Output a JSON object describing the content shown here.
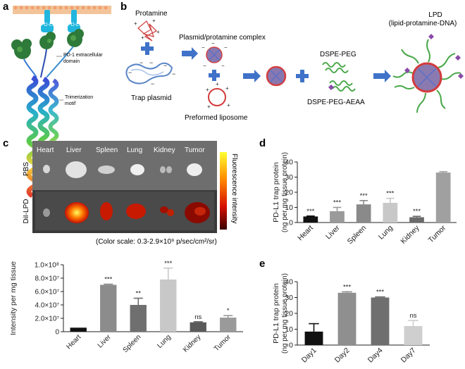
{
  "panels": {
    "a": "a",
    "b": "b",
    "c": "c",
    "d": "d",
    "e": "e"
  },
  "panel_a": {
    "pdl1_left": "PD-L1",
    "pdl1_right": "PD-L1",
    "extracellular": "PD-1 extracellular",
    "domain": "domain",
    "trimer1": "Trimerization",
    "trimer2": "motif"
  },
  "panel_b": {
    "protamine": "Protamine",
    "complex": "Plasmid/protamine complex",
    "trap_plasmid": "Trap plasmid",
    "liposome": "Preformed liposome",
    "dspe_peg": "DSPE-PEG",
    "dspe_peg_aeaa": "DSPE-PEG-AEAA",
    "lpd": "LPD",
    "lpd_full": "(lipid-protamine-DNA)"
  },
  "panel_c_image": {
    "organs": [
      "Heart",
      "Liver",
      "Spleen",
      "Lung",
      "Kidney",
      "Tumor"
    ],
    "row_pbs": "PBS",
    "row_dil": "DiI-LPD",
    "colorbar_label": "Fluorescence intensity",
    "scale_note": "(Color scale: 0.3-2.9×10⁹ p/sec/cm²/sr)"
  },
  "chart_data": [
    {
      "id": "c-bar",
      "type": "bar",
      "categories": [
        "Heart",
        "Liver",
        "Spleen",
        "Lung",
        "Kidney",
        "Tumor"
      ],
      "values": [
        6000000,
        70000000,
        40000000,
        78000000,
        14000000,
        21000000
      ],
      "errors": [
        0,
        1000000,
        10000000,
        17000000,
        800000,
        3000000
      ],
      "significance": [
        "",
        "***",
        "**",
        "***",
        "ns",
        "*"
      ],
      "colors": [
        "#111111",
        "#8c8c8c",
        "#6f6f6f",
        "#c8c8c8",
        "#5a5a5a",
        "#9a9a9a"
      ],
      "ylabel": "Intensity per mg tissue",
      "ylim": [
        0,
        100000000
      ],
      "yticks": [
        "0",
        "2.0×10⁷",
        "4.0×10⁷",
        "6.0×10⁷",
        "8.0×10⁷",
        "1.0×10⁸"
      ]
    },
    {
      "id": "d-bar",
      "type": "bar",
      "categories": [
        "Heart",
        "Liver",
        "Spleen",
        "Lung",
        "Kidney",
        "Tumor"
      ],
      "values": [
        4,
        7.5,
        12,
        13,
        3.5,
        33
      ],
      "errors": [
        0.3,
        2.5,
        2.5,
        3,
        0.6,
        0.6
      ],
      "significance": [
        "***",
        "***",
        "***",
        "***",
        "***",
        ""
      ],
      "colors": [
        "#111111",
        "#9a9a9a",
        "#8a8a8a",
        "#c8c8c8",
        "#6a6a6a",
        "#a0a0a0"
      ],
      "ylabel": "PD-L1 trap protein",
      "ylabel2": "(ng per mg tissue protein)",
      "ylim": [
        0,
        40
      ],
      "yticks": [
        "0",
        "10",
        "20",
        "30",
        "40"
      ]
    },
    {
      "id": "e-bar",
      "type": "bar",
      "categories": [
        "Day1",
        "Day2",
        "Day4",
        "Day7"
      ],
      "values": [
        8.5,
        33,
        30,
        12
      ],
      "errors": [
        5,
        0.6,
        0.4,
        3.5
      ],
      "significance": [
        "",
        "***",
        "***",
        "ns"
      ],
      "colors": [
        "#111111",
        "#8f8f8f",
        "#6f6f6f",
        "#cfcfcf"
      ],
      "ylabel": "PD-L1 trap protein",
      "ylabel2": "(ng per mg tissue protein)",
      "ylim": [
        0,
        40
      ],
      "yticks": [
        "0",
        "10",
        "20",
        "30",
        "40"
      ]
    }
  ]
}
